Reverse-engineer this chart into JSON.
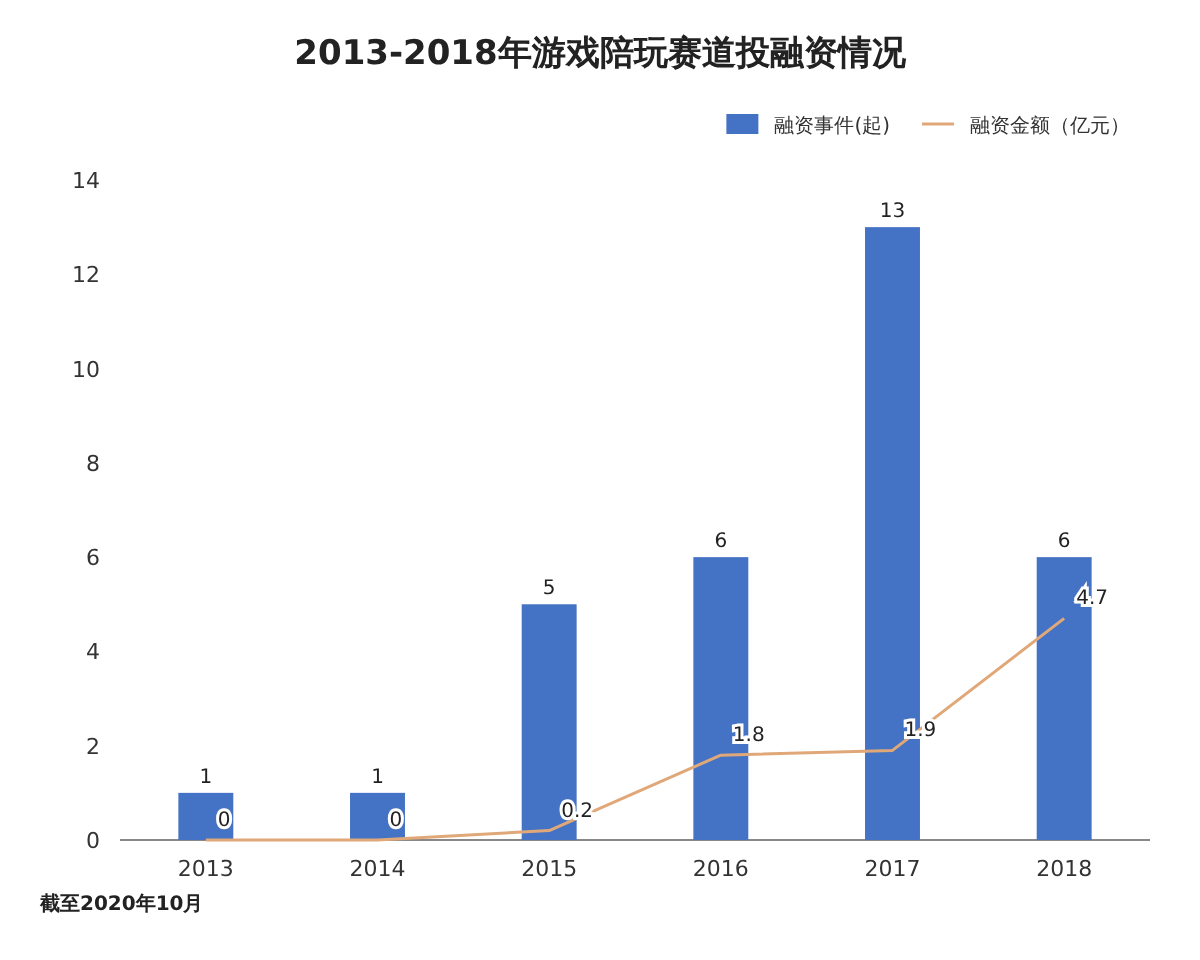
{
  "chart_data": {
    "type": "bar",
    "title": "2013-2018年游戏陪玩赛道投融资情况",
    "categories": [
      "2013",
      "2014",
      "2015",
      "2016",
      "2017",
      "2018"
    ],
    "series": [
      {
        "name": "融资事件(起)",
        "color": "#4472c4",
        "values": [
          1,
          1,
          5,
          6,
          13,
          6
        ]
      },
      {
        "name": "融资金额（亿元）",
        "type": "line",
        "color": "#e0a878",
        "values": [
          0,
          0,
          0.2,
          1.8,
          1.9,
          4.7
        ]
      }
    ],
    "ylim": [
      0,
      14
    ],
    "yticks": [
      0,
      2,
      4,
      6,
      8,
      10,
      12,
      14
    ],
    "data_labels": true,
    "legend": "top right",
    "annotations": [
      "截至2020年10月"
    ]
  }
}
